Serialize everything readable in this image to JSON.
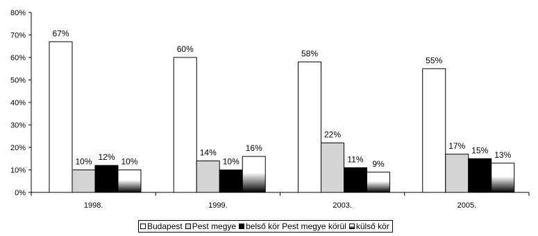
{
  "chart_data": {
    "type": "bar",
    "categories": [
      "1998.",
      "1999.",
      "2003.",
      "2005."
    ],
    "series": [
      {
        "name": "Budapest",
        "values": [
          67,
          60,
          58,
          55
        ],
        "labels": [
          "67%",
          "60%",
          "58%",
          "55%"
        ],
        "color": "#ffffff"
      },
      {
        "name": "Pest megye",
        "values": [
          10,
          14,
          22,
          17
        ],
        "labels": [
          "10%",
          "14%",
          "22%",
          "17%"
        ],
        "color": "#d4d4d4"
      },
      {
        "name": "belső kör Pest megye körül",
        "values": [
          12,
          10,
          11,
          15
        ],
        "labels": [
          "12%",
          "10%",
          "11%",
          "15%"
        ],
        "color": "#000000"
      },
      {
        "name": "külső kör",
        "values": [
          10,
          16,
          9,
          13
        ],
        "labels": [
          "10%",
          "16%",
          "9%",
          "13%"
        ],
        "color": "gradient-white-to-black"
      }
    ],
    "yticks": [
      "0%",
      "10%",
      "20%",
      "30%",
      "40%",
      "50%",
      "60%",
      "70%",
      "80%"
    ],
    "ylim": [
      0,
      80
    ],
    "grid": false,
    "legend_position": "bottom-center"
  }
}
